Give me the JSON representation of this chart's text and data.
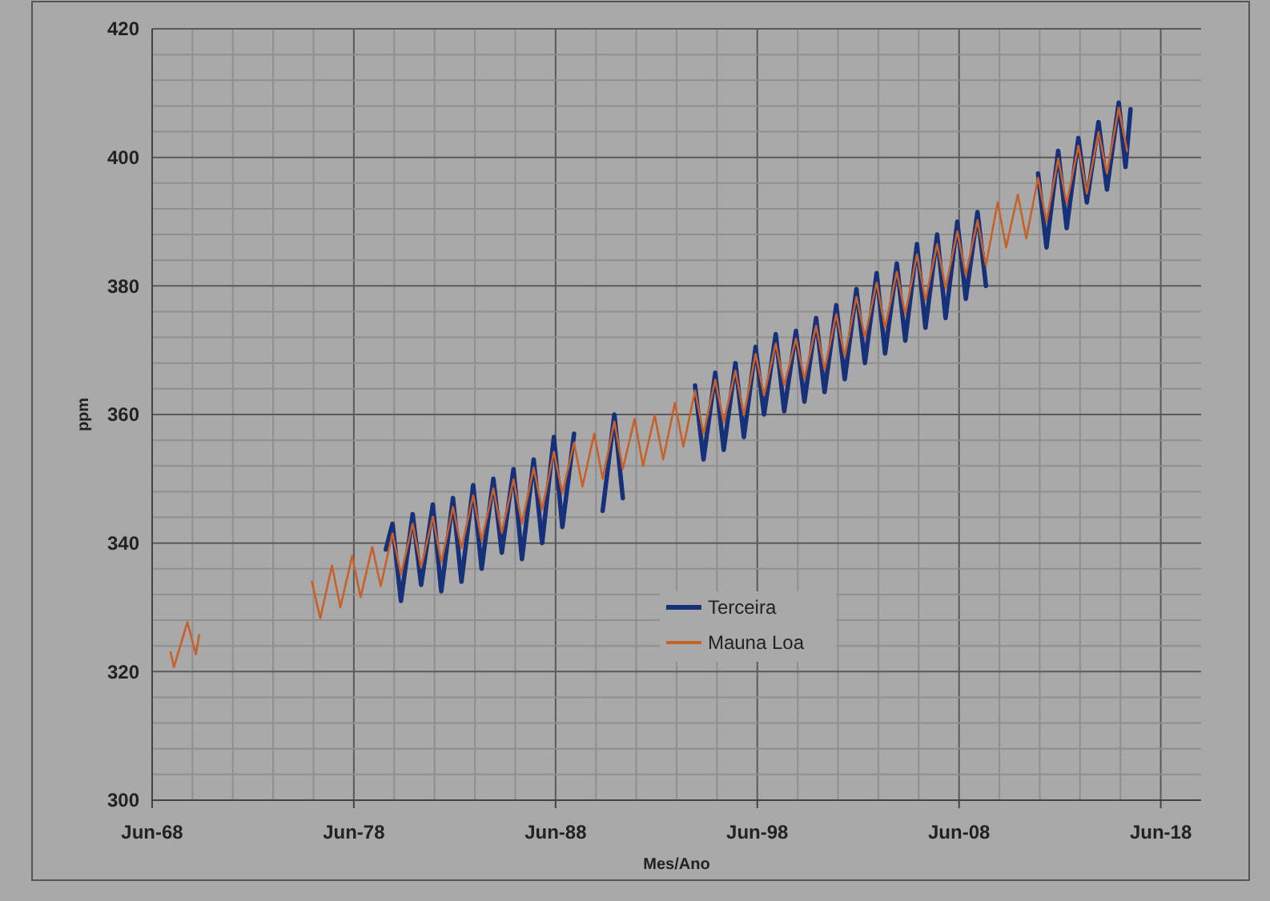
{
  "chart_data": {
    "type": "line",
    "xlabel": "Mes/Ano",
    "ylabel": "ppm",
    "xlim": [
      "1968-06",
      "2020-06"
    ],
    "xticks": [
      {
        "value": "1968-06",
        "label": "Jun-68"
      },
      {
        "value": "1970-06",
        "label": null
      },
      {
        "value": "1972-06",
        "label": null
      },
      {
        "value": "1974-06",
        "label": null
      },
      {
        "value": "1976-06",
        "label": null
      },
      {
        "value": "1978-06",
        "label": "Jun-78"
      },
      {
        "value": "1980-06",
        "label": null
      },
      {
        "value": "1982-06",
        "label": null
      },
      {
        "value": "1984-06",
        "label": null
      },
      {
        "value": "1986-06",
        "label": null
      },
      {
        "value": "1988-06",
        "label": "Jun-88"
      },
      {
        "value": "1990-06",
        "label": null
      },
      {
        "value": "1992-06",
        "label": null
      },
      {
        "value": "1994-06",
        "label": null
      },
      {
        "value": "1996-06",
        "label": null
      },
      {
        "value": "1998-06",
        "label": "Jun-98"
      },
      {
        "value": "2000-06",
        "label": null
      },
      {
        "value": "2002-06",
        "label": null
      },
      {
        "value": "2004-06",
        "label": null
      },
      {
        "value": "2006-06",
        "label": null
      },
      {
        "value": "2008-06",
        "label": "Jun-08"
      },
      {
        "value": "2010-06",
        "label": null
      },
      {
        "value": "2012-06",
        "label": null
      },
      {
        "value": "2014-06",
        "label": null
      },
      {
        "value": "2016-06",
        "label": null
      },
      {
        "value": "2018-06",
        "label": "Jun-18"
      }
    ],
    "ylim": [
      300,
      420
    ],
    "yticks": [
      300,
      {
        "value": 304,
        "label": null
      },
      {
        "value": 308,
        "label": null
      },
      {
        "value": 312,
        "label": null
      },
      {
        "value": 316,
        "label": null
      },
      320,
      {
        "value": 324,
        "label": null
      },
      {
        "value": 328,
        "label": null
      },
      {
        "value": 332,
        "label": null
      },
      {
        "value": 336,
        "label": null
      },
      340,
      {
        "value": 344,
        "label": null
      },
      {
        "value": 348,
        "label": null
      },
      {
        "value": 352,
        "label": null
      },
      {
        "value": 356,
        "label": null
      },
      360,
      {
        "value": 364,
        "label": null
      },
      {
        "value": 368,
        "label": null
      },
      {
        "value": 372,
        "label": null
      },
      {
        "value": 376,
        "label": null
      },
      380,
      {
        "value": 384,
        "label": null
      },
      {
        "value": 388,
        "label": null
      },
      {
        "value": 392,
        "label": null
      },
      {
        "value": 396,
        "label": null
      },
      400,
      {
        "value": 404,
        "label": null
      },
      {
        "value": 408,
        "label": null
      },
      {
        "value": 412,
        "label": null
      },
      {
        "value": 416,
        "label": null
      },
      420
    ],
    "grid": true,
    "legend": "bottom",
    "marker": "none",
    "line_style": "solid",
    "series": [
      {
        "name": "Terceira",
        "color": "#17307a",
        "x": [
          "1980-01",
          "1980-05",
          "1980-10",
          "1981-05",
          "1981-10",
          "1982-05",
          "1982-10",
          "1983-05",
          "1983-10",
          "1984-05",
          "1984-10",
          "1985-05",
          "1985-10",
          "1986-05",
          "1986-10",
          "1987-05",
          "1987-10",
          "1988-05",
          "1988-10",
          "1989-05",
          "1989-10",
          "1990-05",
          "1990-10",
          "1991-05",
          "1991-10",
          "1992-05",
          "1992-10",
          "1993-05",
          "1993-10",
          "1994-05",
          "1994-10",
          "1995-05",
          "1995-10",
          "1996-05",
          "1996-10",
          "1997-05",
          "1997-10",
          "1998-05",
          "1998-10",
          "1999-05",
          "1999-10",
          "2000-05",
          "2000-10",
          "2001-05",
          "2001-10",
          "2002-05",
          "2002-10",
          "2003-05",
          "2003-10",
          "2004-05",
          "2004-10",
          "2005-05",
          "2005-10",
          "2006-05",
          "2006-10",
          "2007-05",
          "2007-10",
          "2008-05",
          "2008-10",
          "2009-05",
          "2009-10",
          "2010-05",
          "2010-10",
          "2011-05",
          "2011-10",
          "2012-05",
          "2012-10",
          "2013-05",
          "2013-10",
          "2014-05",
          "2014-10",
          "2015-05",
          "2015-10",
          "2016-05",
          "2016-09",
          "2016-12"
        ],
        "values": [
          339,
          343,
          331,
          344.5,
          333.5,
          346,
          332.5,
          347,
          334,
          349,
          336,
          350,
          338.5,
          351.5,
          337.5,
          353,
          340,
          356.5,
          342.5,
          357,
          null,
          null,
          345,
          360,
          347,
          null,
          null,
          null,
          null,
          null,
          null,
          364.5,
          353,
          366.5,
          354.5,
          368,
          356.5,
          370.5,
          360,
          372.5,
          360.5,
          373,
          362,
          375,
          363.5,
          377,
          365.5,
          379.5,
          368,
          382,
          369.5,
          383.5,
          371.5,
          386.5,
          373.5,
          388,
          375,
          390,
          378,
          391.5,
          380,
          null,
          null,
          null,
          null,
          397.5,
          386,
          401,
          389,
          403,
          393,
          405.5,
          395,
          408.5,
          398.5,
          407.5
        ]
      },
      {
        "name": "Mauna Loa",
        "color": "#c8602a",
        "x": [
          "1969-05",
          "1969-07",
          "1970-03",
          "1970-08",
          "1970-10",
          "1973-01",
          "1976-05",
          "1976-10",
          "1977-05",
          "1977-10",
          "1978-05",
          "1978-10",
          "1979-05",
          "1979-10",
          "1980-05",
          "1980-10",
          "1981-05",
          "1981-10",
          "1982-05",
          "1982-10",
          "1983-05",
          "1983-10",
          "1984-05",
          "1984-10",
          "1985-05",
          "1985-10",
          "1986-05",
          "1986-10",
          "1987-05",
          "1987-10",
          "1988-05",
          "1988-10",
          "1989-05",
          "1989-10",
          "1990-05",
          "1990-10",
          "1991-05",
          "1991-10",
          "1992-05",
          "1992-10",
          "1993-05",
          "1993-10",
          "1994-05",
          "1994-10",
          "1995-05",
          "1995-10",
          "1996-05",
          "1996-10",
          "1997-05",
          "1997-10",
          "1998-05",
          "1998-10",
          "1999-05",
          "1999-10",
          "2000-05",
          "2000-10",
          "2001-05",
          "2001-10",
          "2002-05",
          "2002-10",
          "2003-05",
          "2003-10",
          "2004-05",
          "2004-10",
          "2005-05",
          "2005-10",
          "2006-05",
          "2006-10",
          "2007-05",
          "2007-10",
          "2008-05",
          "2008-10",
          "2009-05",
          "2009-10",
          "2010-05",
          "2010-10",
          "2011-05",
          "2011-10",
          "2012-05",
          "2012-10",
          "2013-05",
          "2013-10",
          "2014-05",
          "2014-10",
          "2015-05",
          "2015-10",
          "2016-05",
          "2016-10"
        ],
        "values": [
          323,
          320.7,
          327.7,
          322.7,
          325.7,
          null,
          334,
          328.3,
          336.5,
          330,
          338,
          331.6,
          339.4,
          333.3,
          341.5,
          335.1,
          343,
          336.2,
          344.1,
          337,
          345.6,
          339.2,
          347.4,
          340.4,
          348.5,
          341.6,
          349.9,
          343,
          351.7,
          345.2,
          354.2,
          347.7,
          355.6,
          348.8,
          357,
          350,
          358.9,
          351.5,
          359.3,
          352,
          359.9,
          353,
          361.8,
          355,
          363.7,
          357,
          365.4,
          358.8,
          366.8,
          359.9,
          369.4,
          363,
          371,
          364.5,
          371.8,
          365.5,
          373.8,
          367,
          375.6,
          369,
          378.3,
          372,
          380.5,
          373.5,
          382.2,
          375.6,
          384.9,
          377.8,
          386.5,
          379.6,
          388.5,
          381.7,
          390.2,
          383.2,
          393,
          386,
          394.2,
          387.4,
          396.8,
          390,
          399.8,
          392.8,
          401.8,
          394.4,
          403.9,
          397.5,
          407.7,
          401
        ]
      }
    ]
  }
}
